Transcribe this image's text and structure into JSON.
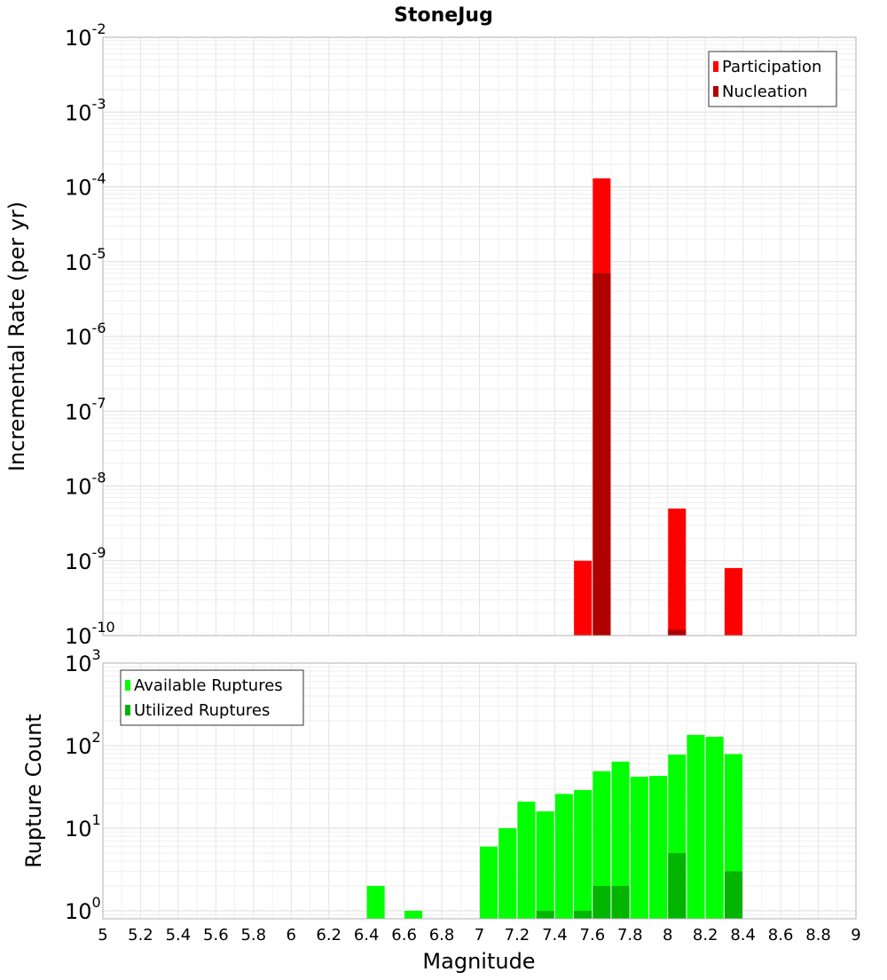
{
  "chart_data": [
    {
      "type": "bar",
      "title": "StoneJug",
      "xlabel": "Magnitude",
      "ylabel": "Incremental Rate (per yr)",
      "y_scale": "log",
      "ylim": [
        1e-10,
        0.01
      ],
      "xlim": [
        5,
        9
      ],
      "grid": true,
      "legend_position": "top-right",
      "series": [
        {
          "name": "Participation",
          "color": "#ff0000",
          "x": [
            7.55,
            7.65,
            8.05,
            8.35
          ],
          "values": [
            1e-09,
            0.00013,
            5e-09,
            8e-10
          ]
        },
        {
          "name": "Nucleation",
          "color": "#b00000",
          "x": [
            7.65,
            8.05
          ],
          "values": [
            7e-06,
            1.2e-10
          ]
        }
      ],
      "y_ticks": [
        "10^-10",
        "10^-9",
        "10^-8",
        "10^-7",
        "10^-6",
        "10^-5",
        "10^-4",
        "10^-3",
        "10^-2"
      ]
    },
    {
      "type": "bar",
      "xlabel": "Magnitude",
      "ylabel": "Rupture Count",
      "y_scale": "log",
      "ylim": [
        0.8,
        1000
      ],
      "xlim": [
        5,
        9
      ],
      "grid": true,
      "legend_position": "top-left",
      "series": [
        {
          "name": "Available Ruptures",
          "color": "#00ff00",
          "x": [
            6.45,
            6.65,
            7.05,
            7.15,
            7.25,
            7.35,
            7.45,
            7.55,
            7.65,
            7.75,
            7.85,
            7.95,
            8.05,
            8.15,
            8.25,
            8.35
          ],
          "values": [
            2,
            1,
            6,
            10,
            21,
            16,
            26,
            29,
            49,
            64,
            42,
            43,
            78,
            135,
            128,
            79
          ]
        },
        {
          "name": "Utilized Ruptures",
          "color": "#00b400",
          "x": [
            7.35,
            7.55,
            7.65,
            7.75,
            8.05,
            8.35
          ],
          "values": [
            1,
            1,
            2,
            2,
            5,
            3
          ]
        }
      ],
      "y_ticks": [
        "10^0",
        "10^1",
        "10^2",
        "10^3"
      ],
      "x_ticks": [
        "5",
        "5.2",
        "5.4",
        "5.6",
        "5.8",
        "6",
        "6.2",
        "6.4",
        "6.6",
        "6.8",
        "7",
        "7.2",
        "7.4",
        "7.6",
        "7.8",
        "8",
        "8.2",
        "8.4",
        "8.6",
        "8.8",
        "9"
      ]
    }
  ]
}
